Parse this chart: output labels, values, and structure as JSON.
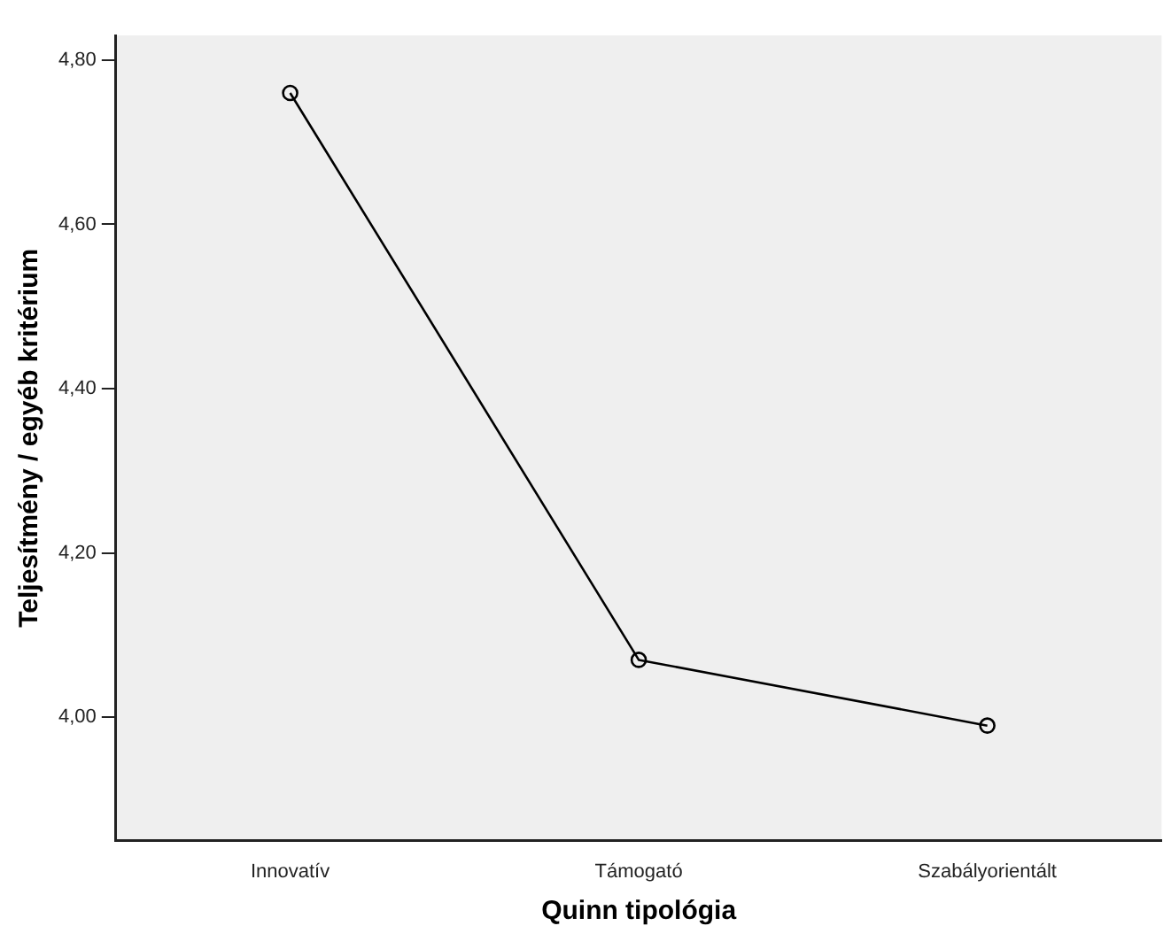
{
  "chart_data": {
    "type": "line",
    "xlabel": "Quinn tipológia",
    "ylabel": "Teljesítmény / egyéb kritérium",
    "categories": [
      "Innovatív",
      "Támogató",
      "Szabályorientált"
    ],
    "series": [
      {
        "color": "#000000",
        "values": [
          4.76,
          4.07,
          3.99
        ]
      }
    ],
    "ylim": [
      3.85,
      4.83
    ],
    "yticks": [
      {
        "value": 4.0,
        "label": "4,00"
      },
      {
        "value": 4.2,
        "label": "4,20"
      },
      {
        "value": 4.4,
        "label": "4,40"
      },
      {
        "value": 4.6,
        "label": "4,60"
      },
      {
        "value": 4.8,
        "label": "4,80"
      }
    ],
    "grid": false,
    "legend": false,
    "marker": "circle",
    "line_style": "solid"
  }
}
